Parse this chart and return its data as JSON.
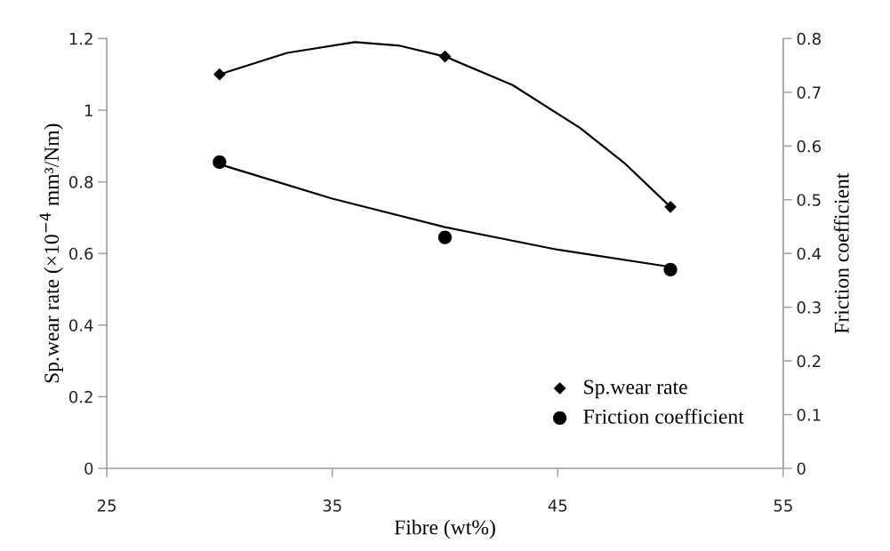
{
  "chart_data": {
    "type": "scatter",
    "xlabel": "Fibre (wt%)",
    "ylabel": "Sp.wear rate (×10$^{−4}$ mm³/Nm)",
    "y2label": "Friction coefficient",
    "xlim": [
      25,
      55
    ],
    "xticks": [
      25,
      35,
      45,
      55
    ],
    "ylim": [
      0,
      1.2
    ],
    "yticks": [
      0,
      0.2,
      0.4,
      0.6,
      0.8,
      1,
      1.2
    ],
    "y2lim": [
      0,
      0.8
    ],
    "y2ticks": [
      0,
      0.1,
      0.2,
      0.3,
      0.4,
      0.5,
      0.6,
      0.7,
      0.8
    ],
    "grid": false,
    "legend": "bottom right",
    "series": [
      {
        "name": "Sp.wear rate",
        "marker": "diamond",
        "color": "#000000",
        "x": [
          30,
          40,
          50
        ],
        "values": [
          1.1,
          1.15,
          0.73
        ]
      },
      {
        "name": "Friction coefficient",
        "marker": "circle",
        "color": "#000000",
        "axis": "y2",
        "x": [
          30,
          40,
          50
        ],
        "values": [
          0.57,
          0.43,
          0.37
        ]
      },
      {
        "type": "line",
        "line_style": "solid",
        "color": "#000000",
        "x": [
          30,
          33,
          36,
          38,
          40,
          43,
          46,
          48,
          50
        ],
        "values": [
          1.1,
          1.16,
          1.19,
          1.18,
          1.15,
          1.07,
          0.95,
          0.85,
          0.73
        ]
      },
      {
        "type": "line",
        "line_style": "solid",
        "color": "#000000",
        "axis": "y2",
        "x": [
          30,
          35,
          40,
          45,
          50
        ],
        "values": [
          0.566,
          0.502,
          0.449,
          0.407,
          0.375
        ]
      }
    ]
  }
}
